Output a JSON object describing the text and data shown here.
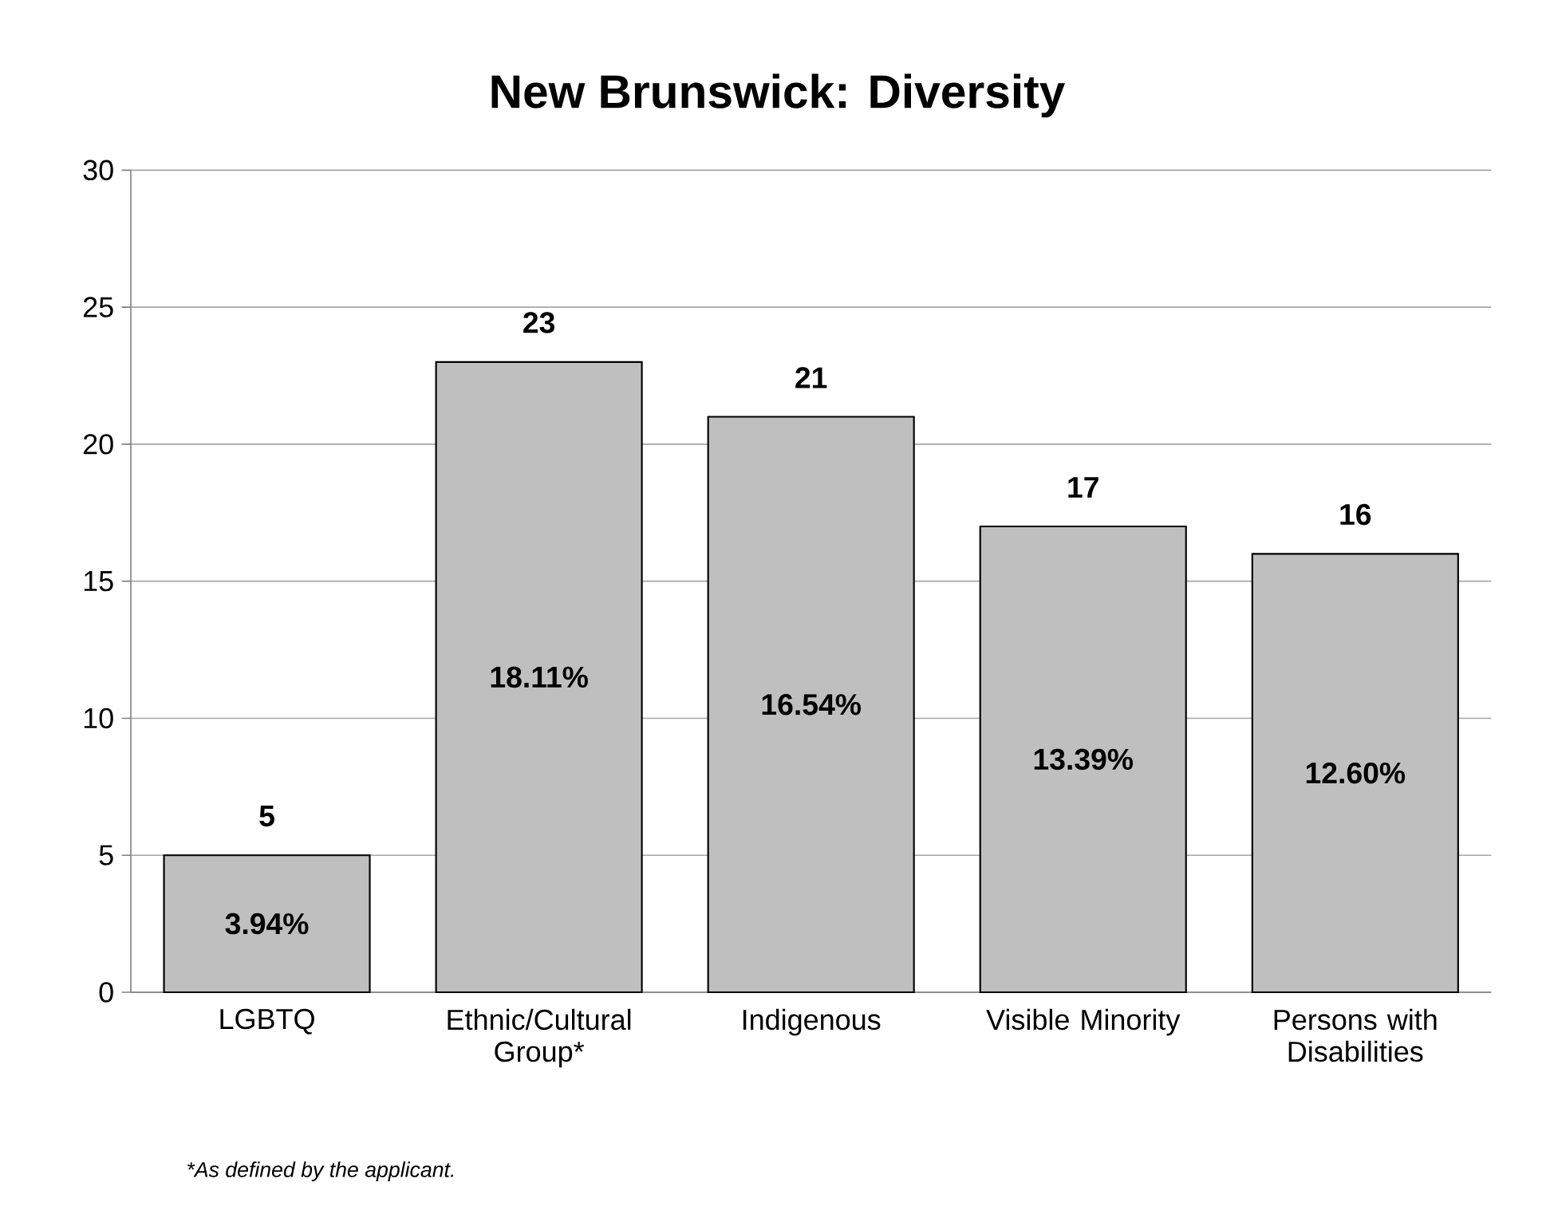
{
  "chart_data": {
    "type": "bar",
    "title": "New Brunswick: Diversity",
    "categories": [
      "LGBTQ",
      "Ethnic/Cultural Group*",
      "Indigenous",
      "Visible Minority",
      "Persons with Disabilities"
    ],
    "values": [
      5,
      23,
      21,
      17,
      16
    ],
    "color": "#bfbfbf",
    "data_labels": true,
    "ylim": [
      0,
      30
    ],
    "yticks": [
      0,
      5,
      10,
      15,
      20,
      25,
      30
    ],
    "grid": "y",
    "annotations": [
      "3.94%",
      "18.11%",
      "16.54%",
      "13.39%",
      "12.60%",
      "*As defined by the applicant."
    ]
  }
}
